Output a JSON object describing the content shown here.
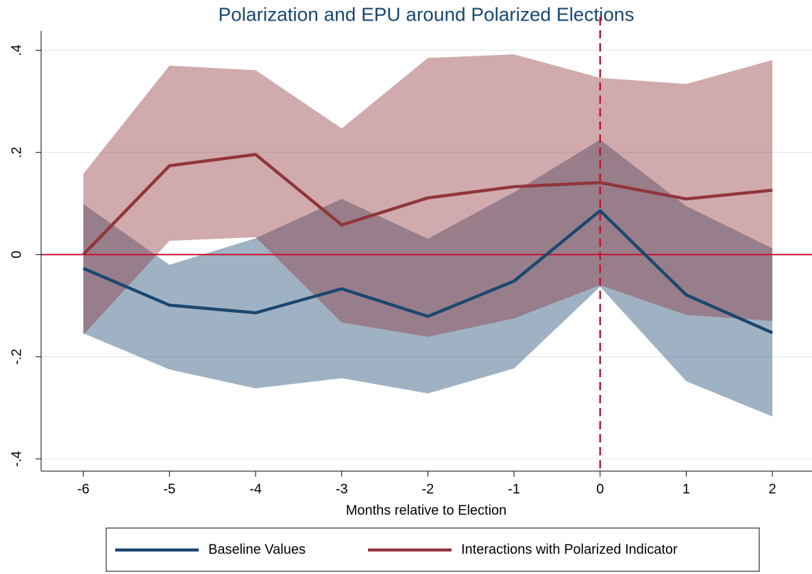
{
  "chart_data": {
    "type": "line-band",
    "title": "Polarization and EPU around Polarized Elections",
    "x_label": "Months relative to Election",
    "x": [
      -6,
      -5,
      -4,
      -3,
      -2,
      -1,
      0,
      1,
      2
    ],
    "series": [
      {
        "name": "Baseline Values",
        "color": "#1a476f",
        "values": [
          -0.027,
          -0.099,
          -0.114,
          -0.067,
          -0.121,
          -0.052,
          0.086,
          -0.079,
          -0.153
        ],
        "upper": [
          0.099,
          -0.02,
          0.032,
          0.109,
          0.031,
          0.122,
          0.225,
          0.095,
          0.012
        ],
        "lower": [
          -0.154,
          -0.225,
          -0.262,
          -0.242,
          -0.272,
          -0.223,
          -0.063,
          -0.248,
          -0.317
        ]
      },
      {
        "name": "Interactions with Polarized Indicator",
        "color": "#90353b",
        "values": [
          0,
          0.174,
          0.196,
          0.058,
          0.111,
          0.133,
          0.141,
          0.109,
          0.126
        ],
        "upper": [
          0.158,
          0.37,
          0.361,
          0.247,
          0.385,
          0.392,
          0.346,
          0.334,
          0.381
        ],
        "lower": [
          -0.157,
          0.027,
          0.034,
          -0.133,
          -0.161,
          -0.125,
          -0.06,
          -0.118,
          -0.13
        ]
      }
    ],
    "xlim": [
      -6.49,
      2.46
    ],
    "ylim": [
      -0.424,
      0.43
    ],
    "xticks": [
      -6,
      -5,
      -4,
      -3,
      -2,
      -1,
      0,
      1,
      2
    ],
    "yticks": [
      {
        "value": -0.4,
        "label": "-.4"
      },
      {
        "value": -0.2,
        "label": "-.2"
      },
      0,
      {
        "value": 0.2,
        "label": ".2"
      },
      {
        "value": 0.4,
        "label": ".4"
      }
    ],
    "grid": true,
    "reference_lines": {
      "y": 0,
      "x": 0,
      "color": "#c8102e"
    },
    "legend": "bottom"
  }
}
